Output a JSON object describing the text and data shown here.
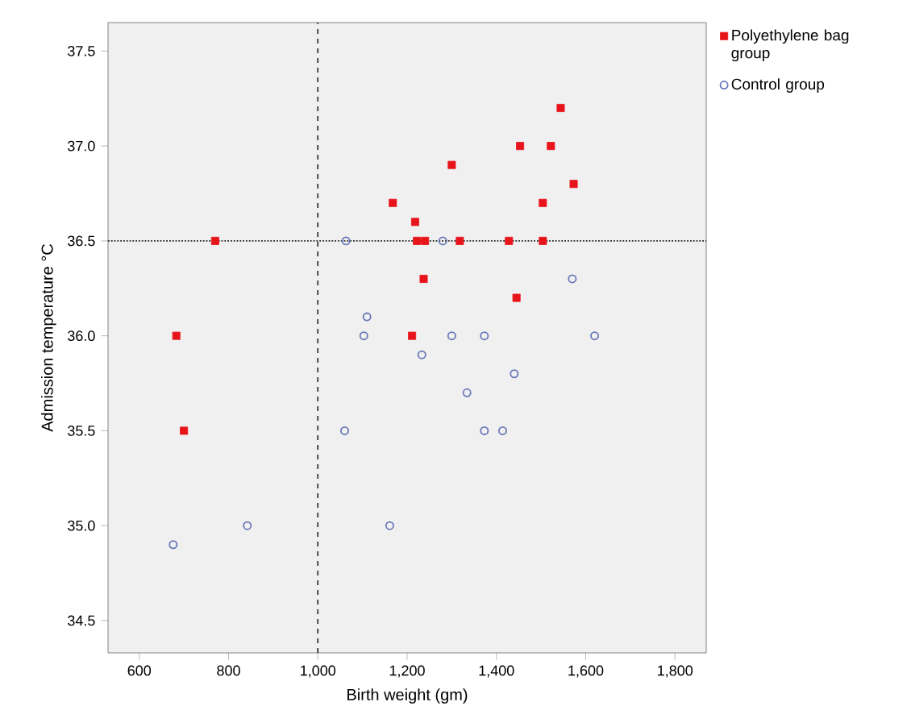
{
  "chart_data": {
    "type": "scatter",
    "xlabel": "Birth weight (gm)",
    "ylabel": "Admission temperature °C",
    "xlim": [
      530,
      1870
    ],
    "ylim": [
      34.33,
      37.65
    ],
    "xticks": [
      600,
      800,
      {
        "value": 1000,
        "label": "1,000"
      },
      {
        "value": 1200,
        "label": "1,200"
      },
      {
        "value": 1400,
        "label": "1,400"
      },
      {
        "value": 1600,
        "label": "1,600"
      },
      {
        "value": 1800,
        "label": "1,800"
      }
    ],
    "yticks": [
      34.5,
      {
        "value": 35,
        "label": "35.0"
      },
      35.5,
      {
        "value": 36,
        "label": "36.0"
      },
      36.5,
      {
        "value": 37,
        "label": "37.0"
      },
      37.5
    ],
    "legend": "right",
    "grid": false,
    "ref_lines": [
      {
        "axis": "x",
        "value": 1000,
        "line_style": "dashed",
        "color": "#333333"
      },
      {
        "axis": "y",
        "value": 36.5,
        "line_style": "dotted",
        "color": "#222222"
      }
    ],
    "series": [
      {
        "name": "Polyethylene bag group",
        "color": "#e8141b",
        "marker": "square",
        "x": [
          683,
          700,
          770,
          1168,
          1218,
          1222,
          1240,
          1237,
          1211,
          1300,
          1318,
          1428,
          1453,
          1445,
          1504,
          1522,
          1544,
          1573,
          1504
        ],
        "values": [
          36.0,
          35.5,
          36.5,
          36.7,
          36.6,
          36.5,
          36.5,
          36.3,
          36.0,
          36.9,
          36.5,
          36.5,
          37.0,
          36.2,
          36.7,
          37.0,
          37.2,
          36.8,
          36.5
        ]
      },
      {
        "name": "Control group",
        "color": "#6a78b8",
        "marker": "circle",
        "x": [
          1063,
          1280,
          1570,
          1110,
          1103,
          1233,
          1300,
          1373,
          1620,
          1440,
          1334,
          1060,
          1373,
          1414,
          842,
          1161,
          676
        ],
        "values": [
          36.5,
          36.5,
          36.3,
          36.1,
          36.0,
          35.9,
          36.0,
          36.0,
          36.0,
          35.8,
          35.7,
          35.5,
          35.5,
          35.5,
          35.0,
          35.0,
          34.9
        ]
      }
    ]
  }
}
